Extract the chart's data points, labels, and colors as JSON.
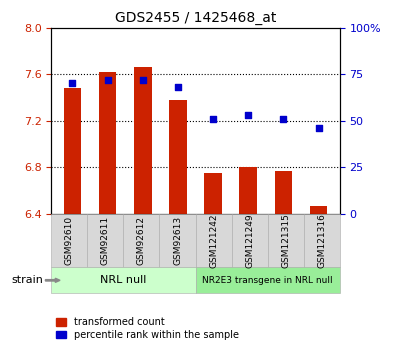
{
  "title": "GDS2455 / 1425468_at",
  "categories": [
    "GSM92610",
    "GSM92611",
    "GSM92612",
    "GSM92613",
    "GSM121242",
    "GSM121249",
    "GSM121315",
    "GSM121316"
  ],
  "bar_values": [
    7.48,
    7.62,
    7.66,
    7.38,
    6.75,
    6.8,
    6.77,
    6.47
  ],
  "scatter_values": [
    70,
    72,
    72,
    68,
    51,
    53,
    51,
    46
  ],
  "ylim_left": [
    6.4,
    8.0
  ],
  "ylim_right": [
    0,
    100
  ],
  "yticks_left": [
    6.4,
    6.8,
    7.2,
    7.6,
    8.0
  ],
  "yticks_right": [
    0,
    25,
    50,
    75,
    100
  ],
  "bar_color": "#cc2200",
  "scatter_color": "#0000cc",
  "bar_bottom": 6.4,
  "group1_label": "NRL null",
  "group2_label": "NR2E3 transgene in NRL null",
  "group1_color": "#ccffcc",
  "group2_color": "#99ee99",
  "strain_label": "strain",
  "legend1": "transformed count",
  "legend2": "percentile rank within the sample",
  "tick_color_left": "#cc2200",
  "tick_color_right": "#0000cc",
  "bar_width": 0.5,
  "gridline_y": [
    6.8,
    7.2,
    7.6
  ],
  "ytick_labels_right": [
    "0",
    "25",
    "50",
    "75",
    "100%"
  ]
}
